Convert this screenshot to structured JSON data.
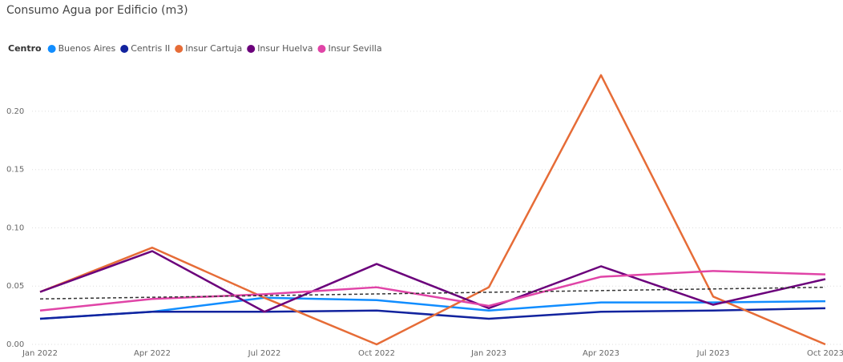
{
  "chart_data": {
    "type": "line",
    "title": "Consumo Agua por Edificio (m3)",
    "legend_title": "Centro",
    "categories": [
      "Jan 2022",
      "Apr 2022",
      "Jul 2022",
      "Oct 2022",
      "Jan 2023",
      "Apr 2023",
      "Jul 2023",
      "Oct 2023"
    ],
    "series": [
      {
        "name": "Buenos Aires",
        "color": "#118DFF",
        "values": [
          0.022,
          0.028,
          0.04,
          0.038,
          0.029,
          0.036,
          0.036,
          0.037
        ]
      },
      {
        "name": "Centris II",
        "color": "#12239E",
        "values": [
          0.022,
          0.028,
          0.028,
          0.029,
          0.022,
          0.028,
          0.029,
          0.031
        ]
      },
      {
        "name": "Insur Cartuja",
        "color": "#E66C37",
        "values": [
          0.045,
          0.083,
          0.04,
          0.0,
          0.049,
          0.231,
          0.041,
          0.0
        ]
      },
      {
        "name": "Insur Huelva",
        "color": "#6B007B",
        "values": [
          0.045,
          0.08,
          0.028,
          0.069,
          0.031,
          0.067,
          0.034,
          0.056
        ]
      },
      {
        "name": "Insur Sevilla",
        "color": "#E044A7",
        "values": [
          0.029,
          0.039,
          0.043,
          0.049,
          0.033,
          0.058,
          0.063,
          0.06
        ]
      }
    ],
    "trendline": {
      "values": [
        0.039,
        0.049
      ],
      "color": "#333333",
      "dashed": true
    },
    "ylim": [
      0,
      0.235
    ],
    "yticks": [
      {
        "value": 0,
        "label": "0.00"
      },
      {
        "value": 0.05,
        "label": "0.05"
      },
      {
        "value": 0.1,
        "label": "0.10"
      },
      {
        "value": 0.15,
        "label": "0.15"
      },
      {
        "value": 0.2,
        "label": "0.20"
      }
    ],
    "grid": true
  }
}
